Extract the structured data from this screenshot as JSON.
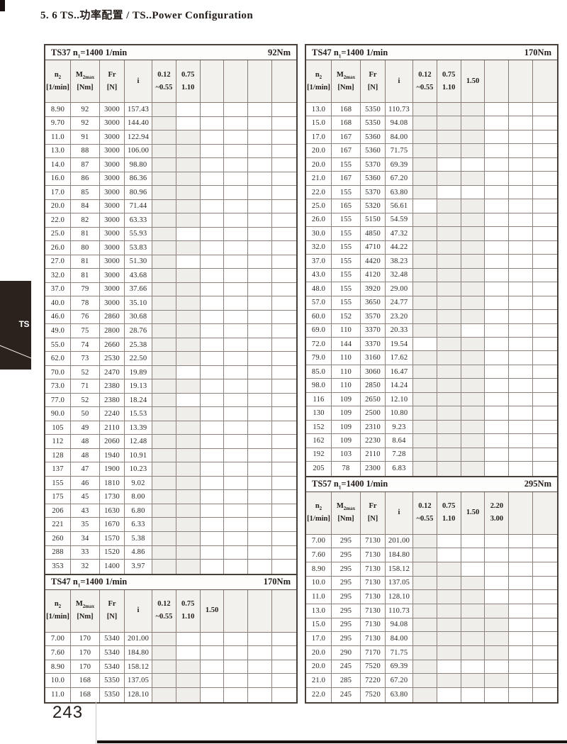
{
  "page": {
    "heading": "5. 6 TS..功率配置 / TS..Power Configuration",
    "side_tab": "TS",
    "page_number": "243"
  },
  "col_headers": [
    {
      "main": "n",
      "sub": "2",
      "unit": "[1/min]"
    },
    {
      "main": "M",
      "sub": "2max",
      "unit": "[Nm]"
    },
    {
      "main": "Fr",
      "sub": "",
      "unit": "[N]"
    },
    {
      "main": "i",
      "sub": "",
      "unit": ""
    }
  ],
  "tables": [
    {
      "id": "ts37",
      "title": {
        "model": "TS37",
        "n_base": "n",
        "n_sub": "1",
        "speed": "=1400 1/min",
        "torque": "92Nm"
      },
      "power_headers": [
        {
          "l1": "0.12",
          "l2": "~0.55"
        },
        {
          "l1": "0.75",
          "l2": "1.10"
        },
        {
          "l1": "",
          "l2": ""
        },
        {
          "l1": "",
          "l2": ""
        },
        {
          "l1": "",
          "l2": ""
        },
        {
          "l1": "",
          "l2": ""
        }
      ],
      "rows": [
        {
          "v": [
            "8.90",
            "92",
            "3000",
            "157.43"
          ],
          "s": "100000"
        },
        {
          "v": [
            "9.70",
            "92",
            "3000",
            "144.40"
          ],
          "s": "100000"
        },
        {
          "v": [
            "11.0",
            "91",
            "3000",
            "122.94"
          ],
          "s": "110000"
        },
        {
          "v": [
            "13.0",
            "88",
            "3000",
            "106.00"
          ],
          "s": "110000"
        },
        {
          "v": [
            "14.0",
            "87",
            "3000",
            "98.80"
          ],
          "s": "110000"
        },
        {
          "v": [
            "16.0",
            "86",
            "3000",
            "86.36"
          ],
          "s": "110000"
        },
        {
          "v": [
            "17.0",
            "85",
            "3000",
            "80.96"
          ],
          "s": "110000"
        },
        {
          "v": [
            "20.0",
            "84",
            "3000",
            "71.44"
          ],
          "s": "110000"
        },
        {
          "v": [
            "22.0",
            "82",
            "3000",
            "63.33"
          ],
          "s": "110000"
        },
        {
          "v": [
            "25.0",
            "81",
            "3000",
            "55.93"
          ],
          "s": "100000"
        },
        {
          "v": [
            "26.0",
            "80",
            "3000",
            "53.83"
          ],
          "s": "110000"
        },
        {
          "v": [
            "27.0",
            "81",
            "3000",
            "51.30"
          ],
          "s": "100000"
        },
        {
          "v": [
            "32.0",
            "81",
            "3000",
            "43.68"
          ],
          "s": "110000"
        },
        {
          "v": [
            "37.0",
            "79",
            "3000",
            "37.66"
          ],
          "s": "110000"
        },
        {
          "v": [
            "40.0",
            "78",
            "3000",
            "35.10"
          ],
          "s": "110000"
        },
        {
          "v": [
            "46.0",
            "76",
            "2860",
            "30.68"
          ],
          "s": "110000"
        },
        {
          "v": [
            "49.0",
            "75",
            "2800",
            "28.76"
          ],
          "s": "110000"
        },
        {
          "v": [
            "55.0",
            "74",
            "2660",
            "25.38"
          ],
          "s": "110000"
        },
        {
          "v": [
            "62.0",
            "73",
            "2530",
            "22.50"
          ],
          "s": "110000"
        },
        {
          "v": [
            "70.0",
            "52",
            "2470",
            "19.89"
          ],
          "s": "100000"
        },
        {
          "v": [
            "73.0",
            "71",
            "2380",
            "19.13"
          ],
          "s": "110000"
        },
        {
          "v": [
            "77.0",
            "52",
            "2380",
            "18.24"
          ],
          "s": "100000"
        },
        {
          "v": [
            "90.0",
            "50",
            "2240",
            "15.53"
          ],
          "s": "110000"
        },
        {
          "v": [
            "105",
            "49",
            "2110",
            "13.39"
          ],
          "s": "110000"
        },
        {
          "v": [
            "112",
            "48",
            "2060",
            "12.48"
          ],
          "s": "110000"
        },
        {
          "v": [
            "128",
            "48",
            "1940",
            "10.91"
          ],
          "s": "110000"
        },
        {
          "v": [
            "137",
            "47",
            "1900",
            "10.23"
          ],
          "s": "110000"
        },
        {
          "v": [
            "155",
            "46",
            "1810",
            "9.02"
          ],
          "s": "110000"
        },
        {
          "v": [
            "175",
            "45",
            "1730",
            "8.00"
          ],
          "s": "110000"
        },
        {
          "v": [
            "206",
            "43",
            "1630",
            "6.80"
          ],
          "s": "110000"
        },
        {
          "v": [
            "221",
            "35",
            "1670",
            "6.33"
          ],
          "s": "110000"
        },
        {
          "v": [
            "260",
            "34",
            "1570",
            "5.38"
          ],
          "s": "110000"
        },
        {
          "v": [
            "288",
            "33",
            "1520",
            "4.86"
          ],
          "s": "110000"
        },
        {
          "v": [
            "353",
            "32",
            "1400",
            "3.97"
          ],
          "s": "110000"
        }
      ]
    },
    {
      "id": "ts47-left",
      "title": {
        "model": "TS47",
        "n_base": "n",
        "n_sub": "1",
        "speed": "=1400 1/min",
        "torque": "170Nm"
      },
      "power_headers": [
        {
          "l1": "0.12",
          "l2": "~0.55"
        },
        {
          "l1": "0.75",
          "l2": "1.10"
        },
        {
          "l1": "1.50",
          "l2": ""
        },
        {
          "l1": "",
          "l2": ""
        },
        {
          "l1": "",
          "l2": ""
        },
        {
          "l1": "",
          "l2": ""
        }
      ],
      "rows": [
        {
          "v": [
            "7.00",
            "170",
            "5340",
            "201.00"
          ],
          "s": "100000"
        },
        {
          "v": [
            "7.60",
            "170",
            "5340",
            "184.80"
          ],
          "s": "100000"
        },
        {
          "v": [
            "8.90",
            "170",
            "5340",
            "158.12"
          ],
          "s": "110000"
        },
        {
          "v": [
            "10.0",
            "168",
            "5350",
            "137.05"
          ],
          "s": "110000"
        },
        {
          "v": [
            "11.0",
            "168",
            "5350",
            "128.10"
          ],
          "s": "110000"
        }
      ]
    },
    {
      "id": "ts47-right",
      "title": {
        "model": "TS47",
        "n_base": "n",
        "n_sub": "1",
        "speed": "=1400 1/min",
        "torque": "170Nm"
      },
      "power_headers": [
        {
          "l1": "0.12",
          "l2": "~0.55"
        },
        {
          "l1": "0.75",
          "l2": "1.10"
        },
        {
          "l1": "1.50",
          "l2": ""
        },
        {
          "l1": "",
          "l2": ""
        },
        {
          "l1": "",
          "l2": ""
        },
        {
          "l1": "",
          "l2": ""
        }
      ],
      "rows": [
        {
          "v": [
            "13.0",
            "168",
            "5350",
            "110.73"
          ],
          "s": "111000"
        },
        {
          "v": [
            "15.0",
            "168",
            "5350",
            "94.08"
          ],
          "s": "111000"
        },
        {
          "v": [
            "17.0",
            "167",
            "5360",
            "84.00"
          ],
          "s": "111000"
        },
        {
          "v": [
            "20.0",
            "167",
            "5360",
            "71.75"
          ],
          "s": "111000"
        },
        {
          "v": [
            "20.0",
            "155",
            "5370",
            "69.39"
          ],
          "s": "100000"
        },
        {
          "v": [
            "21.0",
            "167",
            "5360",
            "67.20"
          ],
          "s": "111000"
        },
        {
          "v": [
            "22.0",
            "155",
            "5370",
            "63.80"
          ],
          "s": "100000"
        },
        {
          "v": [
            "25.0",
            "165",
            "5320",
            "56.61"
          ],
          "s": "011000"
        },
        {
          "v": [
            "26.0",
            "155",
            "5150",
            "54.59"
          ],
          "s": "111000"
        },
        {
          "v": [
            "30.0",
            "155",
            "4850",
            "47.32"
          ],
          "s": "111000"
        },
        {
          "v": [
            "32.0",
            "155",
            "4710",
            "44.22"
          ],
          "s": "111000"
        },
        {
          "v": [
            "37.0",
            "155",
            "4420",
            "38.23"
          ],
          "s": "111000"
        },
        {
          "v": [
            "43.0",
            "155",
            "4120",
            "32.48"
          ],
          "s": "111000"
        },
        {
          "v": [
            "48.0",
            "155",
            "3920",
            "29.00"
          ],
          "s": "111000"
        },
        {
          "v": [
            "57.0",
            "155",
            "3650",
            "24.77"
          ],
          "s": "111000"
        },
        {
          "v": [
            "60.0",
            "152",
            "3570",
            "23.20"
          ],
          "s": "111000"
        },
        {
          "v": [
            "69.0",
            "110",
            "3370",
            "20.33"
          ],
          "s": "110000"
        },
        {
          "v": [
            "72.0",
            "144",
            "3370",
            "19.54"
          ],
          "s": "011000"
        },
        {
          "v": [
            "79.0",
            "110",
            "3160",
            "17.62"
          ],
          "s": "111000"
        },
        {
          "v": [
            "85.0",
            "110",
            "3060",
            "16.47"
          ],
          "s": "111000"
        },
        {
          "v": [
            "98.0",
            "110",
            "2850",
            "14.24"
          ],
          "s": "111000"
        },
        {
          "v": [
            "116",
            "109",
            "2650",
            "12.10"
          ],
          "s": "111000"
        },
        {
          "v": [
            "130",
            "109",
            "2500",
            "10.80"
          ],
          "s": "111000"
        },
        {
          "v": [
            "152",
            "109",
            "2310",
            "9.23"
          ],
          "s": "111000"
        },
        {
          "v": [
            "162",
            "109",
            "2230",
            "8.64"
          ],
          "s": "111000"
        },
        {
          "v": [
            "192",
            "103",
            "2110",
            "7.28"
          ],
          "s": "111000"
        },
        {
          "v": [
            "205",
            "78",
            "2300",
            "6.83"
          ],
          "s": "111000"
        }
      ]
    },
    {
      "id": "ts57",
      "title": {
        "model": "TS57",
        "n_base": "n",
        "n_sub": "1",
        "speed": "=1400 1/min",
        "torque": "295Nm"
      },
      "power_headers": [
        {
          "l1": "0.12",
          "l2": "~0.55"
        },
        {
          "l1": "0.75",
          "l2": "1.10"
        },
        {
          "l1": "1.50",
          "l2": ""
        },
        {
          "l1": "2.20",
          "l2": "3.00"
        },
        {
          "l1": "",
          "l2": ""
        },
        {
          "l1": "",
          "l2": ""
        }
      ],
      "rows": [
        {
          "v": [
            "7.00",
            "295",
            "7130",
            "201.00"
          ],
          "s": "100000"
        },
        {
          "v": [
            "7.60",
            "295",
            "7130",
            "184.80"
          ],
          "s": "100000"
        },
        {
          "v": [
            "8.90",
            "295",
            "7130",
            "158.12"
          ],
          "s": "110000"
        },
        {
          "v": [
            "10.0",
            "295",
            "7130",
            "137.05"
          ],
          "s": "111000"
        },
        {
          "v": [
            "11.0",
            "295",
            "7130",
            "128.10"
          ],
          "s": "111000"
        },
        {
          "v": [
            "13.0",
            "295",
            "7130",
            "110.73"
          ],
          "s": "111100"
        },
        {
          "v": [
            "15.0",
            "295",
            "7130",
            "94.08"
          ],
          "s": "111100"
        },
        {
          "v": [
            "17.0",
            "295",
            "7130",
            "84.00"
          ],
          "s": "111100"
        },
        {
          "v": [
            "20.0",
            "290",
            "7170",
            "71.75"
          ],
          "s": "111100"
        },
        {
          "v": [
            "20.0",
            "245",
            "7520",
            "69.39"
          ],
          "s": "100000"
        },
        {
          "v": [
            "21.0",
            "285",
            "7220",
            "67.20"
          ],
          "s": "111100"
        },
        {
          "v": [
            "22.0",
            "245",
            "7520",
            "63.80"
          ],
          "s": "100000"
        }
      ]
    }
  ]
}
